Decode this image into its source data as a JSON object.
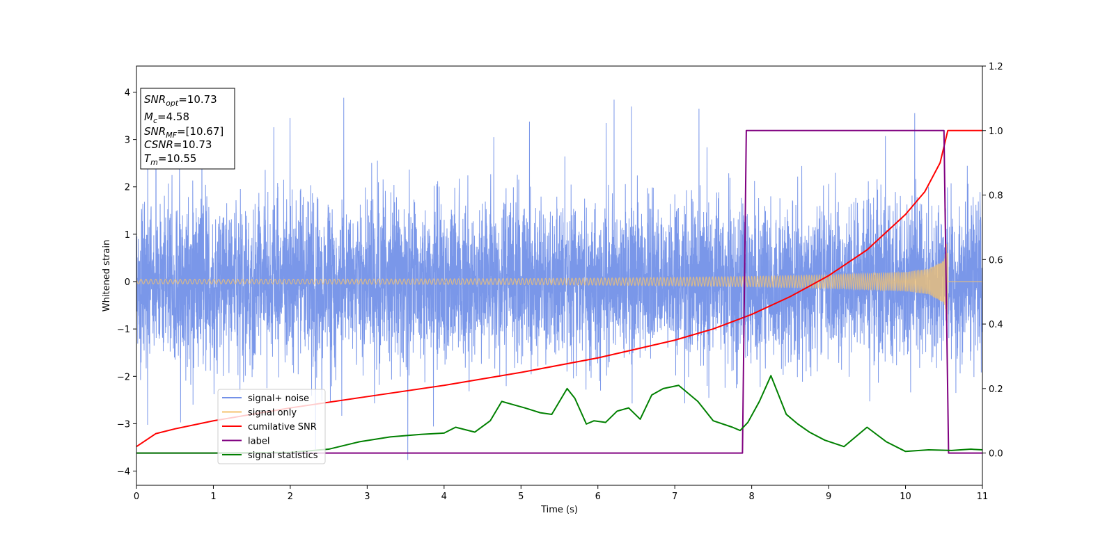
{
  "chart_data": {
    "type": "line",
    "xlabel": "Time (s)",
    "ylabel": "Whitened strain",
    "xlim": [
      0,
      11
    ],
    "ylim_left": [
      -4.3,
      4.55
    ],
    "ylim_right": [
      -0.1,
      1.2
    ],
    "xticks": [
      "0",
      "1",
      "2",
      "3",
      "4",
      "5",
      "6",
      "7",
      "8",
      "9",
      "10",
      "11"
    ],
    "yticks_left": [
      "−4",
      "−3",
      "−2",
      "−1",
      "0",
      "1",
      "2",
      "3",
      "4"
    ],
    "yticks_right": [
      "0.0",
      "0.2",
      "0.4",
      "0.6",
      "0.8",
      "1.0",
      "1.2"
    ],
    "legend_position": "lower-left",
    "series": [
      {
        "name": "signal+ noise",
        "axis": "left",
        "color": "#7391e8",
        "kind": "noise",
        "amplitude_sigma": 0.85,
        "peak_range": [
          -3.85,
          4.15
        ]
      },
      {
        "name": "signal only",
        "axis": "left",
        "color": "#f5c36e",
        "kind": "chirp",
        "envelope": {
          "t": [
            0,
            1,
            2,
            3,
            4,
            5,
            6,
            7,
            8,
            9,
            10,
            10.3,
            10.5,
            10.55
          ],
          "amp": [
            0.05,
            0.05,
            0.05,
            0.055,
            0.06,
            0.065,
            0.075,
            0.09,
            0.11,
            0.14,
            0.2,
            0.27,
            0.45,
            0.95
          ]
        },
        "merger_time": 10.55
      },
      {
        "name": "cumilative SNR",
        "axis": "right",
        "color": "#ff0000",
        "x": [
          0,
          0.25,
          0.5,
          1,
          1.5,
          2,
          3,
          4,
          5,
          6,
          7,
          7.5,
          8,
          8.5,
          9,
          9.5,
          10,
          10.25,
          10.45,
          10.55,
          11
        ],
        "y": [
          0.02,
          0.06,
          0.075,
          0.1,
          0.12,
          0.14,
          0.175,
          0.21,
          0.25,
          0.295,
          0.35,
          0.385,
          0.43,
          0.485,
          0.55,
          0.63,
          0.74,
          0.81,
          0.9,
          1.0,
          1.0
        ]
      },
      {
        "name": "label",
        "axis": "right",
        "color": "#800080",
        "x": [
          0,
          7.88,
          7.93,
          10.5,
          10.56,
          11
        ],
        "y": [
          0,
          0,
          1,
          1,
          0,
          0
        ]
      },
      {
        "name": "signal statistics",
        "axis": "right",
        "color": "#008000",
        "x": [
          0,
          1,
          2,
          2.5,
          2.9,
          3.3,
          3.7,
          4.0,
          4.15,
          4.4,
          4.6,
          4.75,
          4.9,
          5.05,
          5.25,
          5.4,
          5.6,
          5.7,
          5.85,
          5.95,
          6.1,
          6.25,
          6.4,
          6.55,
          6.7,
          6.85,
          7.05,
          7.3,
          7.5,
          7.75,
          7.85,
          7.95,
          8.1,
          8.25,
          8.45,
          8.6,
          8.75,
          8.95,
          9.2,
          9.5,
          9.75,
          10.0,
          10.3,
          10.6,
          10.85,
          11.0
        ],
        "y": [
          0,
          0,
          0.002,
          0.012,
          0.035,
          0.05,
          0.058,
          0.062,
          0.08,
          0.065,
          0.1,
          0.16,
          0.15,
          0.14,
          0.125,
          0.12,
          0.2,
          0.17,
          0.09,
          0.1,
          0.095,
          0.13,
          0.14,
          0.105,
          0.18,
          0.2,
          0.21,
          0.16,
          0.1,
          0.08,
          0.07,
          0.095,
          0.16,
          0.24,
          0.12,
          0.09,
          0.065,
          0.04,
          0.02,
          0.08,
          0.035,
          0.005,
          0.01,
          0.008,
          0.012,
          0.01
        ]
      }
    ],
    "annotation": {
      "lines": [
        {
          "base": "SNR",
          "sub": "opt",
          "value": "=10.73"
        },
        {
          "base": "M",
          "sub": "c",
          "value": "=4.58"
        },
        {
          "base": "SNR",
          "sub": "MF",
          "value": "=[10.67]"
        },
        {
          "base": "CSNR",
          "sub": "",
          "value": "=10.73"
        },
        {
          "base": "T",
          "sub": "m",
          "value": "=10.55"
        }
      ]
    }
  }
}
